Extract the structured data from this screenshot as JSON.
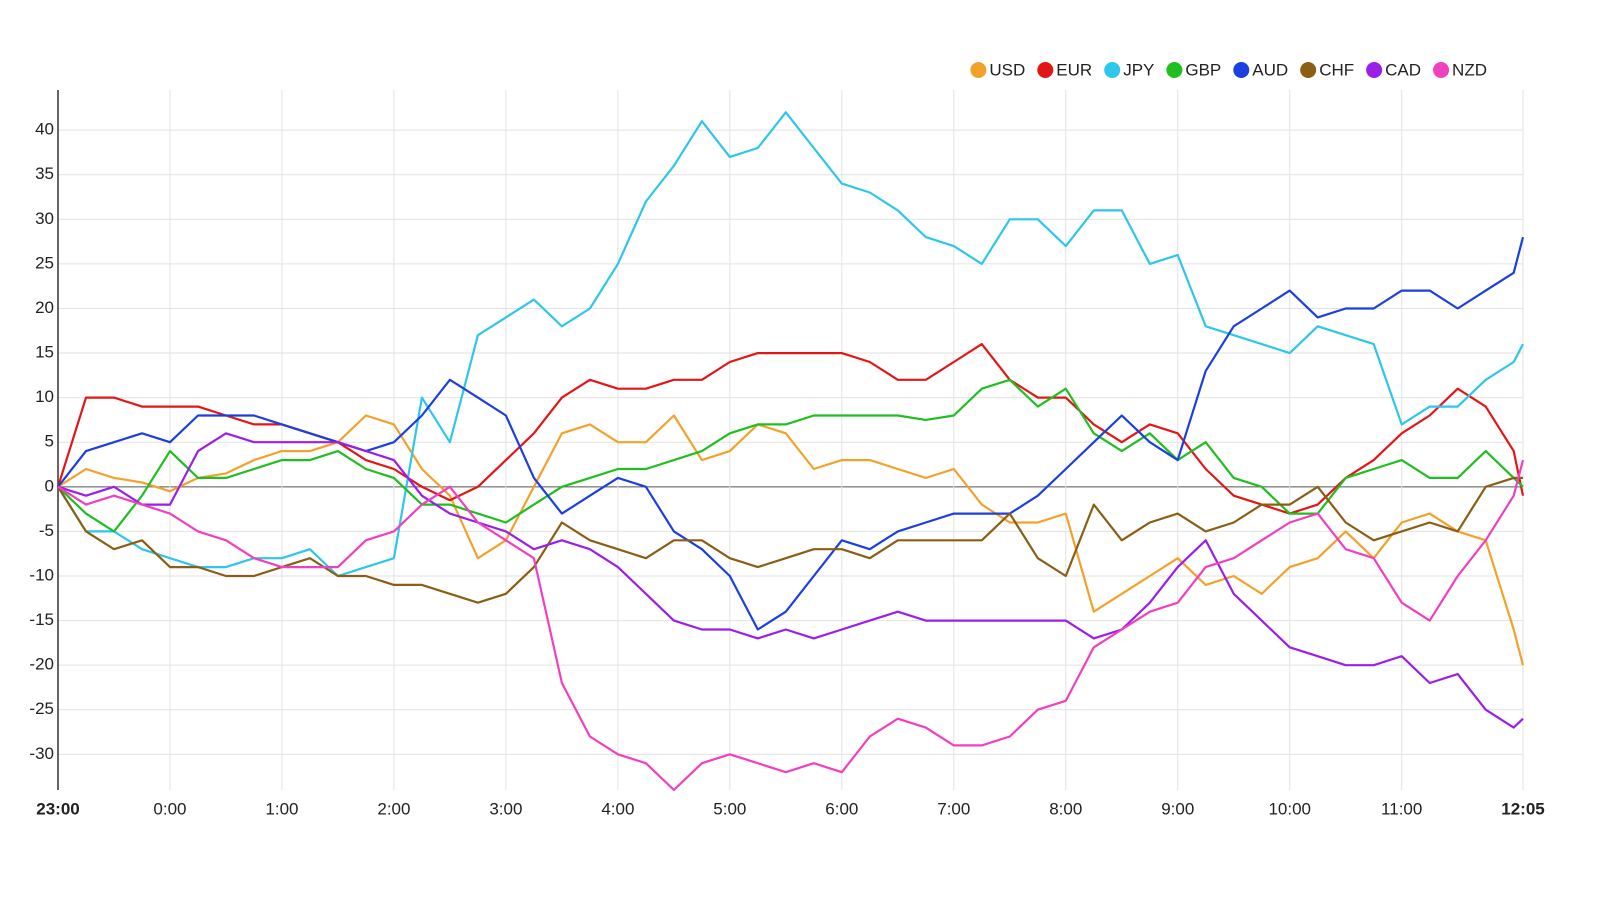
{
  "chart_data": {
    "type": "line",
    "x": [
      "23:00",
      "23:15",
      "23:30",
      "23:45",
      "0:00",
      "0:15",
      "0:30",
      "0:45",
      "1:00",
      "1:15",
      "1:30",
      "1:45",
      "2:00",
      "2:15",
      "2:30",
      "2:45",
      "3:00",
      "3:15",
      "3:30",
      "3:45",
      "4:00",
      "4:15",
      "4:30",
      "4:45",
      "5:00",
      "5:15",
      "5:30",
      "5:45",
      "6:00",
      "6:15",
      "6:30",
      "6:45",
      "7:00",
      "7:15",
      "7:30",
      "7:45",
      "8:00",
      "8:15",
      "8:30",
      "8:45",
      "9:00",
      "9:15",
      "9:30",
      "9:45",
      "10:00",
      "10:15",
      "10:30",
      "10:45",
      "11:00",
      "11:15",
      "11:30",
      "11:45",
      "12:00",
      "12:05"
    ],
    "xlim": [
      "23:00",
      "12:05"
    ],
    "xticks": [
      "23:00",
      "0:00",
      "1:00",
      "2:00",
      "3:00",
      "4:00",
      "5:00",
      "6:00",
      "7:00",
      "8:00",
      "9:00",
      "10:00",
      "11:00",
      "12:05"
    ],
    "ylim": [
      -34,
      44.5
    ],
    "yticks": [
      -30,
      -25,
      -20,
      -15,
      -10,
      -5,
      0,
      5,
      10,
      15,
      20,
      25,
      30,
      35,
      40
    ],
    "grid": true,
    "legend": "top-right",
    "series": [
      {
        "name": "USD",
        "color": "#f2a22a",
        "values": [
          0,
          2,
          1,
          0.5,
          -0.5,
          1,
          1.5,
          3,
          4,
          4,
          5,
          8,
          7,
          2,
          -1,
          -8,
          -6,
          0,
          6,
          7,
          5,
          5,
          8,
          3,
          4,
          7,
          6,
          2,
          3,
          3,
          2,
          1,
          2,
          -2,
          -4,
          -4,
          -3,
          -14,
          -12,
          -10,
          -8,
          -11,
          -10,
          -12,
          -9,
          -8,
          -5,
          -8,
          -4,
          -3,
          -5,
          -6,
          -16,
          -20
        ]
      },
      {
        "name": "EUR",
        "color": "#e31616",
        "values": [
          0,
          10,
          10,
          9,
          9,
          9,
          8,
          7,
          7,
          6,
          5,
          3,
          2,
          0,
          -1.5,
          0,
          3,
          6,
          10,
          12,
          11,
          11,
          12,
          12,
          14,
          15,
          15,
          15,
          15,
          14,
          12,
          12,
          14,
          16,
          12,
          10,
          10,
          7,
          5,
          7,
          6,
          2,
          -1,
          -2,
          -3,
          -2,
          1,
          3,
          6,
          8,
          11,
          9,
          4,
          -1
        ]
      },
      {
        "name": "JPY",
        "color": "#2ec6ea",
        "values": [
          0,
          -5,
          -5,
          -7,
          -8,
          -9,
          -9,
          -8,
          -8,
          -7,
          -10,
          -9,
          -8,
          10,
          5,
          17,
          19,
          21,
          18,
          20,
          25,
          32,
          36,
          41,
          37,
          38,
          42,
          38,
          34,
          33,
          31,
          28,
          27,
          25,
          30,
          30,
          27,
          31,
          31,
          25,
          26,
          18,
          17,
          16,
          15,
          18,
          17,
          16,
          7,
          9,
          9,
          12,
          14,
          16
        ]
      },
      {
        "name": "GBP",
        "color": "#1fbf1f",
        "values": [
          0,
          -3,
          -5,
          -1,
          4,
          1,
          1,
          2,
          3,
          3,
          4,
          2,
          1,
          -2,
          -2,
          -3,
          -4,
          -2,
          0,
          1,
          2,
          2,
          3,
          4,
          6,
          7,
          7,
          8,
          8,
          8,
          8,
          7.5,
          8,
          11,
          12,
          9,
          11,
          6,
          4,
          6,
          3,
          5,
          1,
          0,
          -3,
          -3,
          1,
          2,
          3,
          1,
          1,
          4,
          1,
          0
        ]
      },
      {
        "name": "AUD",
        "color": "#1c3fe0",
        "values": [
          0,
          4,
          5,
          6,
          5,
          8,
          8,
          8,
          7,
          6,
          5,
          4,
          5,
          8,
          12,
          10,
          8,
          1,
          -3,
          -1,
          1,
          0,
          -5,
          -7,
          -10,
          -16,
          -14,
          -10,
          -6,
          -7,
          -5,
          -4,
          -3,
          -3,
          -3,
          -1,
          2,
          5,
          8,
          5,
          3,
          13,
          18,
          20,
          22,
          19,
          20,
          20,
          22,
          22,
          20,
          22,
          24,
          28
        ]
      },
      {
        "name": "CHF",
        "color": "#8b5e14",
        "values": [
          0,
          -5,
          -7,
          -6,
          -9,
          -9,
          -10,
          -10,
          -9,
          -8,
          -10,
          -10,
          -11,
          -11,
          -12,
          -13,
          -12,
          -9,
          -4,
          -6,
          -7,
          -8,
          -6,
          -6,
          -8,
          -9,
          -8,
          -7,
          -7,
          -8,
          -6,
          -6,
          -6,
          -6,
          -3,
          -8,
          -10,
          -2,
          -6,
          -4,
          -3,
          -5,
          -4,
          -2,
          -2,
          0,
          -4,
          -6,
          -5,
          -4,
          -5,
          0,
          1,
          1
        ]
      },
      {
        "name": "CAD",
        "color": "#9b1fe8",
        "values": [
          0,
          -1,
          0,
          -2,
          -2,
          4,
          6,
          5,
          5,
          5,
          5,
          4,
          3,
          -1,
          -3,
          -4,
          -5,
          -7,
          -6,
          -7,
          -9,
          -12,
          -15,
          -16,
          -16,
          -17,
          -16,
          -17,
          -16,
          -15,
          -14,
          -15,
          -15,
          -15,
          -15,
          -15,
          -15,
          -17,
          -16,
          -13,
          -9,
          -6,
          -12,
          -15,
          -18,
          -19,
          -20,
          -20,
          -19,
          -22,
          -21,
          -25,
          -27,
          -26
        ]
      },
      {
        "name": "NZD",
        "color": "#f040c0",
        "values": [
          0,
          -2,
          -1,
          -2,
          -3,
          -5,
          -6,
          -8,
          -9,
          -9,
          -9,
          -6,
          -5,
          -2,
          0,
          -4,
          -6,
          -8,
          -22,
          -28,
          -30,
          -31,
          -34,
          -31,
          -30,
          -31,
          -32,
          -31,
          -32,
          -28,
          -26,
          -27,
          -29,
          -29,
          -28,
          -25,
          -24,
          -18,
          -16,
          -14,
          -13,
          -9,
          -8,
          -6,
          -4,
          -3,
          -7,
          -8,
          -13,
          -15,
          -10,
          -6,
          -1,
          3
        ]
      }
    ]
  }
}
